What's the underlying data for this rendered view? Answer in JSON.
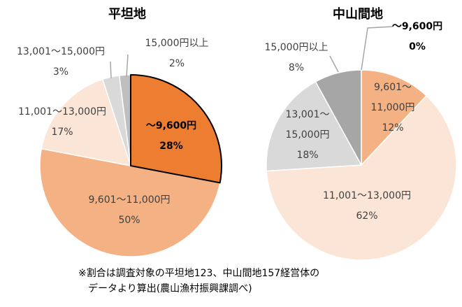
{
  "chart_data": [
    {
      "type": "pie",
      "title": "平坦地",
      "categories": [
        "～9,600円",
        "9,601～11,000円",
        "11,001～13,000円",
        "13,001～15,000円",
        "15,000円以上"
      ],
      "values": [
        28,
        50,
        17,
        3,
        2
      ],
      "value_labels": [
        "28%",
        "50%",
        "17%",
        "3%",
        "2%"
      ],
      "colors": [
        "#ed7d31",
        "#f4b183",
        "#fbe5d6",
        "#d9d9d9",
        "#bfbfbf"
      ]
    },
    {
      "type": "pie",
      "title": "中山間地",
      "categories": [
        "～9,600円",
        "9,601～11,000円",
        "11,001～13,000円",
        "13,001～15,000円",
        "15,000円以上"
      ],
      "values": [
        0,
        12,
        62,
        18,
        8
      ],
      "value_labels": [
        "0%",
        "12%",
        "62%",
        "18%",
        "8%"
      ],
      "colors": [
        "#ed7d31",
        "#f4b183",
        "#fbe5d6",
        "#d9d9d9",
        "#a6a6a6"
      ]
    }
  ],
  "note": [
    "※割合は調査対象の平坦地123、中山間地157経営体の",
    "データより算出(農山漁村振興課調べ)"
  ]
}
